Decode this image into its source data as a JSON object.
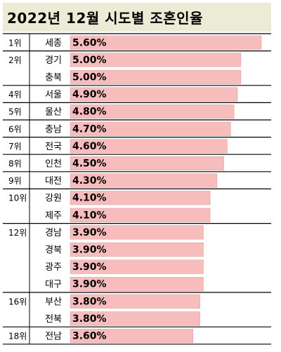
{
  "chart_data": {
    "type": "bar",
    "orientation": "horizontal",
    "title": "2022년 12월 시도별 조혼인율",
    "bar_color": "#f7bdbd",
    "rows": [
      {
        "rank": "1위",
        "region": "세종",
        "value": 5.6,
        "label": "5.60%"
      },
      {
        "rank": "2위",
        "region": "경기",
        "value": 5.0,
        "label": "5.00%"
      },
      {
        "rank": "",
        "region": "충북",
        "value": 5.0,
        "label": "5.00%"
      },
      {
        "rank": "4위",
        "region": "서울",
        "value": 4.9,
        "label": "4.90%"
      },
      {
        "rank": "5위",
        "region": "울산",
        "value": 4.8,
        "label": "4.80%"
      },
      {
        "rank": "6위",
        "region": "충남",
        "value": 4.7,
        "label": "4.70%"
      },
      {
        "rank": "7위",
        "region": "전국",
        "value": 4.6,
        "label": "4.60%"
      },
      {
        "rank": "8위",
        "region": "인천",
        "value": 4.5,
        "label": "4.50%"
      },
      {
        "rank": "9위",
        "region": "대전",
        "value": 4.3,
        "label": "4.30%"
      },
      {
        "rank": "10위",
        "region": "강원",
        "value": 4.1,
        "label": "4.10%"
      },
      {
        "rank": "",
        "region": "제주",
        "value": 4.1,
        "label": "4.10%"
      },
      {
        "rank": "12위",
        "region": "경남",
        "value": 3.9,
        "label": "3.90%"
      },
      {
        "rank": "",
        "region": "경북",
        "value": 3.9,
        "label": "3.90%"
      },
      {
        "rank": "",
        "region": "광주",
        "value": 3.9,
        "label": "3.90%"
      },
      {
        "rank": "",
        "region": "대구",
        "value": 3.9,
        "label": "3.90%"
      },
      {
        "rank": "16위",
        "region": "부산",
        "value": 3.8,
        "label": "3.80%"
      },
      {
        "rank": "",
        "region": "전북",
        "value": 3.8,
        "label": "3.80%"
      },
      {
        "rank": "18위",
        "region": "전남",
        "value": 3.6,
        "label": "3.60%"
      }
    ]
  }
}
